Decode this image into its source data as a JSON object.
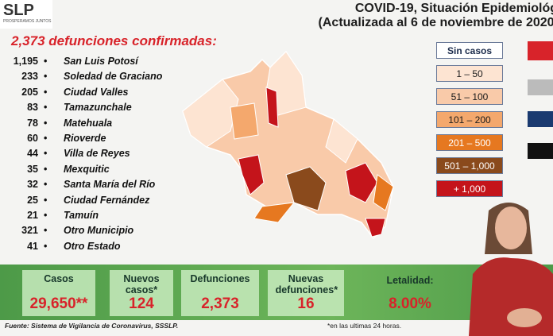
{
  "header": {
    "logo": "SLP",
    "logo_sub": "PROSPERAMOS JUNTOS",
    "title_line1": "COVID-19, Situación Epidemiológ",
    "title_line2": "(Actualizada al 6 de noviembre de 2020, "
  },
  "subtitle": "2,373 defunciones confirmadas:",
  "list": [
    {
      "count": "1,195",
      "name": "San Luis Potosí"
    },
    {
      "count": "233",
      "name": "Soledad de Graciano"
    },
    {
      "count": "205",
      "name": "Ciudad Valles"
    },
    {
      "count": "83",
      "name": "Tamazunchale"
    },
    {
      "count": "78",
      "name": "Matehuala"
    },
    {
      "count": "60",
      "name": "Rioverde"
    },
    {
      "count": "44",
      "name": "Villa de Reyes"
    },
    {
      "count": "35",
      "name": "Mexquitic"
    },
    {
      "count": "32",
      "name": "Santa María del Río"
    },
    {
      "count": "25",
      "name": "Ciudad Fernández"
    },
    {
      "count": "21",
      "name": "Tamuín"
    },
    {
      "count": "321",
      "name": "Otro Municipio"
    },
    {
      "count": "41",
      "name": "Otro Estado"
    }
  ],
  "legend": [
    {
      "label": "Sin casos",
      "color": "#ffffff",
      "text": "#1a2a4a"
    },
    {
      "label": "1 – 50",
      "color": "#fde4d2",
      "text": "#1a1a1a"
    },
    {
      "label": "51 – 100",
      "color": "#f9caa9",
      "text": "#1a1a1a"
    },
    {
      "label": "101 – 200",
      "color": "#f4a86d",
      "text": "#1a1a1a"
    },
    {
      "label": "201 – 500",
      "color": "#e67820",
      "text": "#ffffff"
    },
    {
      "label": "501 – 1,000",
      "color": "#8a4a1c",
      "text": "#ffffff"
    },
    {
      "label": "+ 1,000",
      "color": "#c4141b",
      "text": "#ffffff"
    }
  ],
  "stats": [
    {
      "label": "Casos",
      "value": "29,650**"
    },
    {
      "label": "Nuevos casos*",
      "value": "124"
    },
    {
      "label": "Defunciones",
      "value": "2,373"
    },
    {
      "label": "Nuevas defunciones*",
      "value": "16"
    },
    {
      "label": "Letalidad:",
      "value": "8.00%"
    }
  ],
  "footer": {
    "source": "Fuente: Sistema de Vigilancia de Coronavirus, SSSLP.",
    "note": "*en las ultimas 24 horas."
  }
}
